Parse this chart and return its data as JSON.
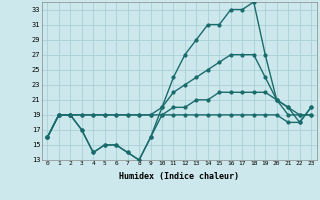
{
  "xlabel": "Humidex (Indice chaleur)",
  "x": [
    0,
    1,
    2,
    3,
    4,
    5,
    6,
    7,
    8,
    9,
    10,
    11,
    12,
    13,
    14,
    15,
    16,
    17,
    18,
    19,
    20,
    21,
    22,
    23
  ],
  "line_max": [
    16,
    19,
    19,
    17,
    14,
    15,
    15,
    14,
    13,
    16,
    20,
    24,
    27,
    29,
    31,
    31,
    33,
    33,
    34,
    27,
    21,
    20,
    18,
    20
  ],
  "line_mean": [
    16,
    19,
    19,
    19,
    19,
    19,
    19,
    19,
    19,
    19,
    20,
    22,
    23,
    24,
    25,
    26,
    27,
    27,
    27,
    24,
    21,
    20,
    19,
    19
  ],
  "line_min": [
    16,
    19,
    19,
    19,
    19,
    19,
    19,
    19,
    19,
    19,
    19,
    20,
    20,
    21,
    21,
    22,
    22,
    22,
    22,
    22,
    21,
    19,
    19,
    19
  ],
  "line_low": [
    16,
    19,
    19,
    17,
    14,
    15,
    15,
    14,
    13,
    16,
    19,
    19,
    19,
    19,
    19,
    19,
    19,
    19,
    19,
    19,
    19,
    18,
    18,
    20
  ],
  "ylim": [
    13,
    34
  ],
  "yticks": [
    13,
    15,
    17,
    19,
    21,
    23,
    25,
    27,
    29,
    31,
    33
  ],
  "bg_color": "#cce8ec",
  "grid_color": "#aad0d8",
  "line_color": "#1a6b6b",
  "line_width": 1.0,
  "marker_size": 2.0
}
